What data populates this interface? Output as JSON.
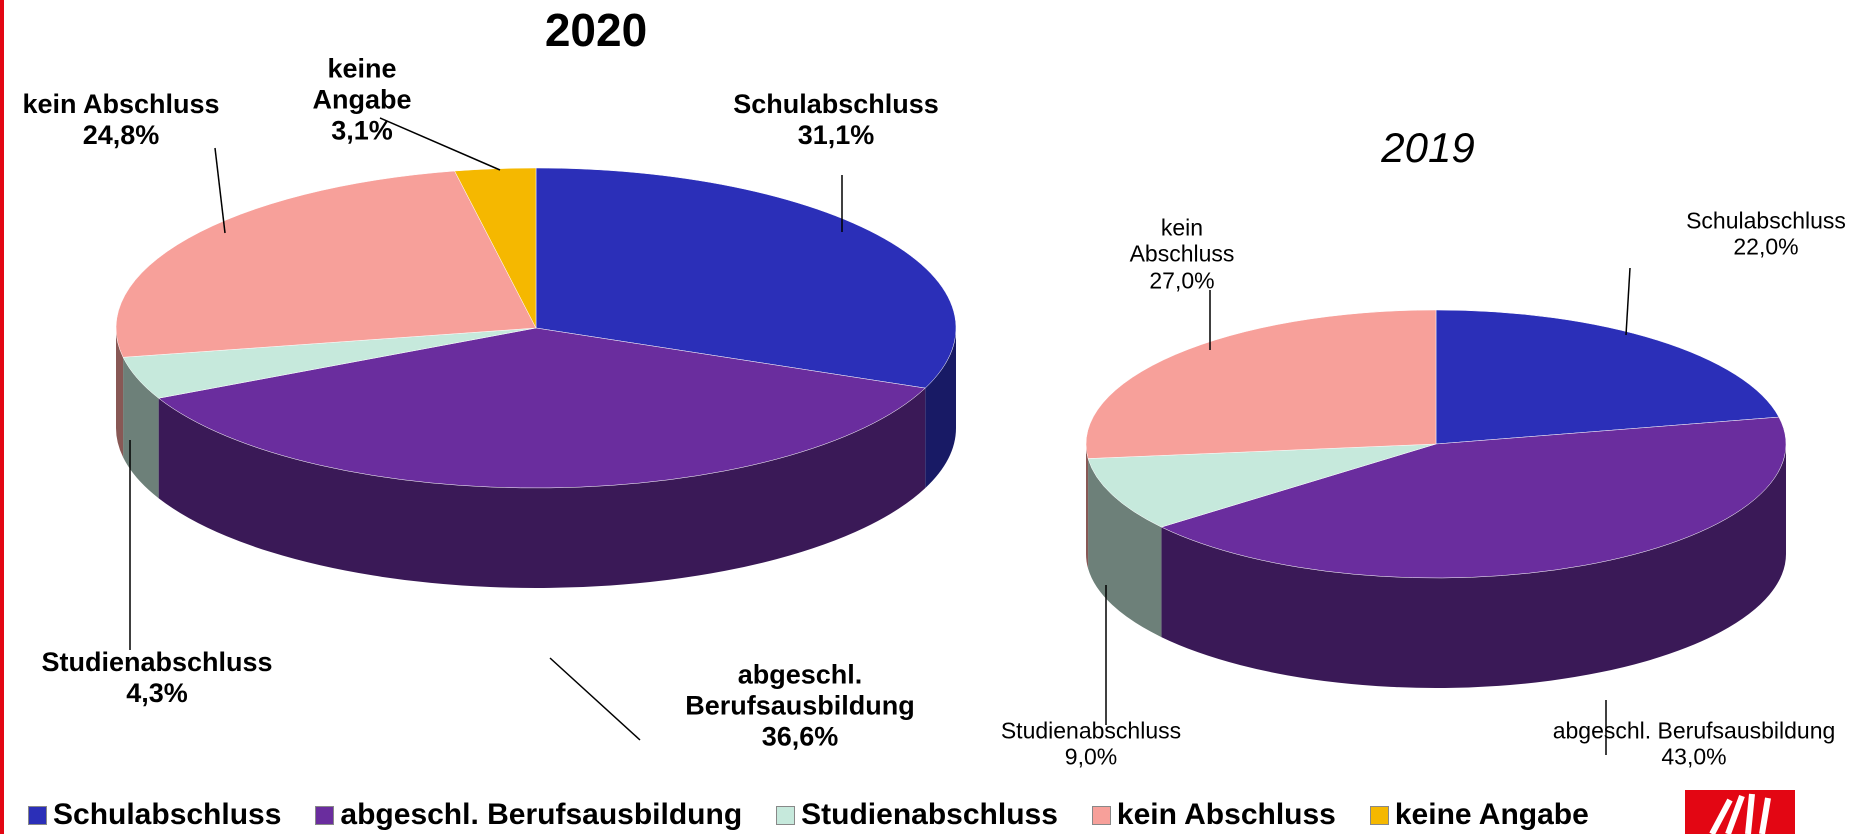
{
  "chart_data": [
    {
      "type": "pie",
      "title": "2020",
      "categories": [
        "Schulabschluss",
        "abgeschl. Berufsausbildung",
        "Studienabschluss",
        "kein Abschluss",
        "keine Angabe"
      ],
      "values": [
        31.1,
        36.6,
        4.3,
        24.8,
        3.1
      ],
      "value_labels": [
        "31,1%",
        "36,6%",
        "4,3%",
        "24,8%",
        "3,1%"
      ],
      "colors": [
        "#2b2fb8",
        "#6a2d9e",
        "#c6e9dc",
        "#f7a09a",
        "#f5b800"
      ]
    },
    {
      "type": "pie",
      "title": "2019",
      "categories": [
        "Schulabschluss",
        "abgeschl. Berufsausbildung",
        "Studienabschluss",
        "kein Abschluss"
      ],
      "values": [
        22.0,
        43.0,
        9.0,
        27.0
      ],
      "value_labels": [
        "22,0%",
        "43,0%",
        "9,0%",
        "27,0%"
      ],
      "colors": [
        "#2b2fb8",
        "#6a2d9e",
        "#c6e9dc",
        "#f7a09a"
      ]
    }
  ]
}
